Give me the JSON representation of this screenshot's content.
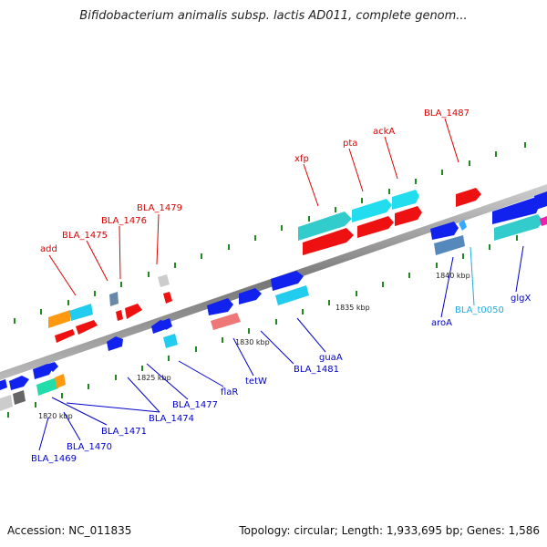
{
  "title": "Bifidobacterium animalis subsp. lactis AD011, complete genom...",
  "footer": {
    "accession": "Accession: NC_011835",
    "stats": "Topology: circular; Length: 1,933,695 bp; Genes: 1,586"
  },
  "colors": {
    "backbone": "#888888",
    "label_red": "#dd0000",
    "label_blue": "#0000cc",
    "label_cyan": "#22aadd",
    "tick": "#228822"
  },
  "scale": [
    "1820 kbp",
    "1825 kbp",
    "1830 kbp",
    "1835 kbp",
    "1840 kbp"
  ],
  "labels": {
    "add": "add",
    "bla1475": "BLA_1475",
    "bla1476": "BLA_1476",
    "bla1479": "BLA_1479",
    "xfp": "xfp",
    "pta": "pta",
    "ackA": "ackA",
    "bla1487": "BLA_1487",
    "bla1469": "BLA_1469",
    "bla1470": "BLA_1470",
    "bla1471": "BLA_1471",
    "bla1474": "BLA_1474",
    "bla1477": "BLA_1477",
    "flaR": "flaR",
    "tetW": "tetW",
    "bla1481": "BLA_1481",
    "guaA": "guaA",
    "aroA": "aroA",
    "blat0050": "BLA_t0050",
    "glgX": "glgX"
  }
}
